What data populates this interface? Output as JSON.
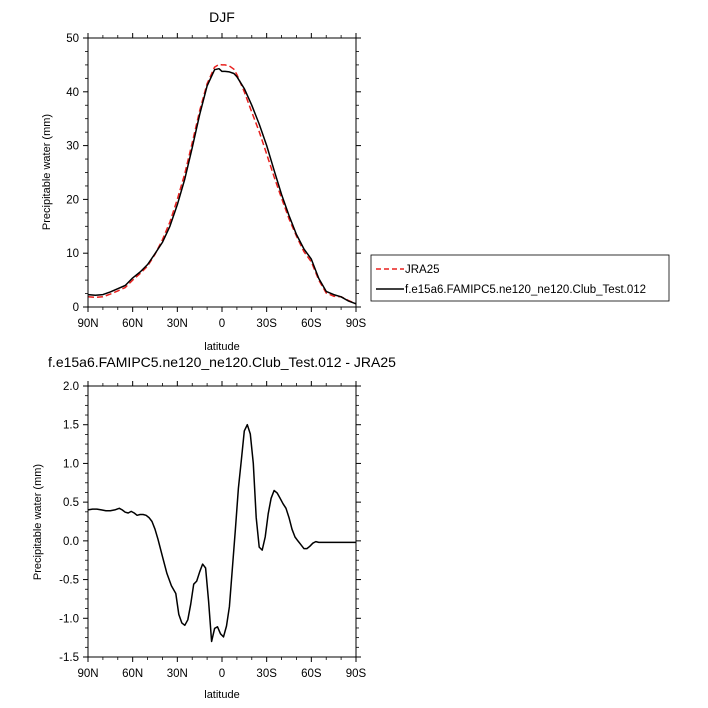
{
  "chart_data": [
    {
      "type": "line",
      "title": "DJF",
      "xlabel": "latitude",
      "ylabel": "Precipitable water (mm)",
      "xlim": [
        90,
        -90
      ],
      "ylim": [
        0,
        50
      ],
      "xticks": [
        {
          "value": 90,
          "label": "90N"
        },
        {
          "value": 60,
          "label": "60N"
        },
        {
          "value": 30,
          "label": "30N"
        },
        {
          "value": 0,
          "label": "0"
        },
        {
          "value": -30,
          "label": "30S"
        },
        {
          "value": -60,
          "label": "60S"
        },
        {
          "value": -90,
          "label": "90S"
        }
      ],
      "yticks": [
        0,
        10,
        20,
        30,
        40,
        50
      ],
      "legend": [
        {
          "label": "JRA25",
          "color": "#e8201e",
          "dash": "dashed"
        },
        {
          "label": "f.e15a6.FAMIPC5.ne120_ne120.Club_Test.012",
          "color": "#000000",
          "dash": "solid"
        }
      ],
      "series": [
        {
          "name": "JRA25",
          "color": "#e8201e",
          "x": [
            90,
            85,
            80,
            75,
            70,
            65,
            60,
            55,
            50,
            45,
            40,
            35,
            30,
            25,
            20,
            15,
            10,
            5,
            2,
            0,
            -2,
            -5,
            -8,
            -10,
            -15,
            -20,
            -25,
            -30,
            -35,
            -40,
            -45,
            -50,
            -55,
            -60,
            -65,
            -70,
            -75,
            -80,
            -85,
            -90
          ],
          "y": [
            1.9,
            1.8,
            1.9,
            2.4,
            3.0,
            3.6,
            5.0,
            6.2,
            7.6,
            9.8,
            12.5,
            15.8,
            20.0,
            24.8,
            30.5,
            36.5,
            41.5,
            44.6,
            45.1,
            45.0,
            45.0,
            44.8,
            44.2,
            43.2,
            40.0,
            36.2,
            32.6,
            28.4,
            24.2,
            20.2,
            16.4,
            13.2,
            10.3,
            8.4,
            5.0,
            2.6,
            2.0,
            1.9,
            1.2,
            0.6
          ]
        },
        {
          "name": "f.e15a6.FAMIPC5.ne120_ne120.Club_Test.012",
          "color": "#000000",
          "x": [
            90,
            85,
            80,
            75,
            70,
            65,
            60,
            55,
            50,
            45,
            40,
            35,
            30,
            25,
            20,
            15,
            10,
            5,
            2,
            0,
            -2,
            -5,
            -8,
            -10,
            -15,
            -20,
            -25,
            -30,
            -35,
            -40,
            -45,
            -50,
            -55,
            -60,
            -65,
            -70,
            -75,
            -80,
            -85,
            -90
          ],
          "y": [
            2.3,
            2.2,
            2.3,
            2.8,
            3.4,
            4.0,
            5.4,
            6.5,
            7.9,
            9.9,
            12.0,
            15.0,
            19.0,
            23.8,
            29.6,
            35.8,
            41.1,
            44.1,
            44.3,
            43.8,
            43.8,
            43.7,
            43.4,
            42.8,
            40.6,
            37.5,
            34.0,
            30.0,
            25.4,
            20.9,
            17.0,
            13.5,
            10.8,
            8.9,
            5.3,
            2.9,
            2.3,
            1.9,
            1.1,
            0.6
          ]
        }
      ]
    },
    {
      "type": "line",
      "title": "f.e15a6.FAMIPC5.ne120_ne120.Club_Test.012 - JRA25",
      "xlabel": "latitude",
      "ylabel": "Precipitable water (mm)",
      "xlim": [
        90,
        -90
      ],
      "ylim": [
        -1.5,
        2.0
      ],
      "xticks": [
        {
          "value": 90,
          "label": "90N"
        },
        {
          "value": 60,
          "label": "60N"
        },
        {
          "value": 30,
          "label": "30N"
        },
        {
          "value": 0,
          "label": "0"
        },
        {
          "value": -30,
          "label": "30S"
        },
        {
          "value": -60,
          "label": "60S"
        },
        {
          "value": -90,
          "label": "90S"
        }
      ],
      "yticks": [
        {
          "value": -1.5,
          "label": "-1.5"
        },
        {
          "value": -1.0,
          "label": "-1.0"
        },
        {
          "value": -0.5,
          "label": "-0.5"
        },
        {
          "value": 0.0,
          "label": "0.0"
        },
        {
          "value": 0.5,
          "label": "0.5"
        },
        {
          "value": 1.0,
          "label": "1.0"
        },
        {
          "value": 1.5,
          "label": "1.5"
        },
        {
          "value": 2.0,
          "label": "2.0"
        }
      ],
      "series": [
        {
          "name": "f.e15a6.FAMIPC5.ne120_ne120.Club_Test.012 - JRA25",
          "color": "#000000",
          "x": [
            90,
            87,
            84,
            81,
            78,
            75,
            72,
            69,
            67,
            65,
            63,
            61,
            59,
            57,
            55,
            53,
            51,
            49,
            47,
            45,
            43,
            40,
            37,
            34,
            31,
            29,
            27,
            25,
            23,
            21,
            19,
            17,
            15,
            13,
            11,
            9,
            7,
            5,
            3,
            1,
            -1,
            -3,
            -5,
            -7,
            -9,
            -11,
            -13,
            -15,
            -17,
            -19,
            -21,
            -23,
            -25,
            -27,
            -29,
            -31,
            -33,
            -35,
            -37,
            -39,
            -41,
            -43,
            -45,
            -47,
            -49,
            -51,
            -53,
            -55,
            -57,
            -59,
            -61,
            -63,
            -65,
            -67,
            -69,
            -71,
            -73,
            -75,
            -77,
            -79,
            -81,
            -83,
            -85,
            -87,
            -90
          ],
          "y": [
            0.4,
            0.41,
            0.41,
            0.4,
            0.39,
            0.39,
            0.4,
            0.42,
            0.4,
            0.37,
            0.36,
            0.38,
            0.36,
            0.33,
            0.34,
            0.34,
            0.33,
            0.3,
            0.25,
            0.15,
            0.02,
            -0.2,
            -0.42,
            -0.58,
            -0.68,
            -0.95,
            -1.06,
            -1.09,
            -1.02,
            -0.82,
            -0.56,
            -0.52,
            -0.4,
            -0.3,
            -0.35,
            -0.78,
            -1.3,
            -1.13,
            -1.11,
            -1.2,
            -1.24,
            -1.1,
            -0.85,
            -0.35,
            0.15,
            0.68,
            1.05,
            1.42,
            1.5,
            1.38,
            1.0,
            0.3,
            -0.08,
            -0.12,
            0.05,
            0.35,
            0.55,
            0.65,
            0.62,
            0.55,
            0.48,
            0.42,
            0.3,
            0.15,
            0.05,
            0.0,
            -0.05,
            -0.1,
            -0.1,
            -0.07,
            -0.03,
            -0.01,
            -0.02,
            -0.02,
            -0.02,
            -0.02,
            -0.02,
            -0.02,
            -0.02,
            -0.02,
            -0.02,
            -0.02,
            -0.02,
            -0.02,
            -0.02
          ]
        }
      ]
    }
  ]
}
